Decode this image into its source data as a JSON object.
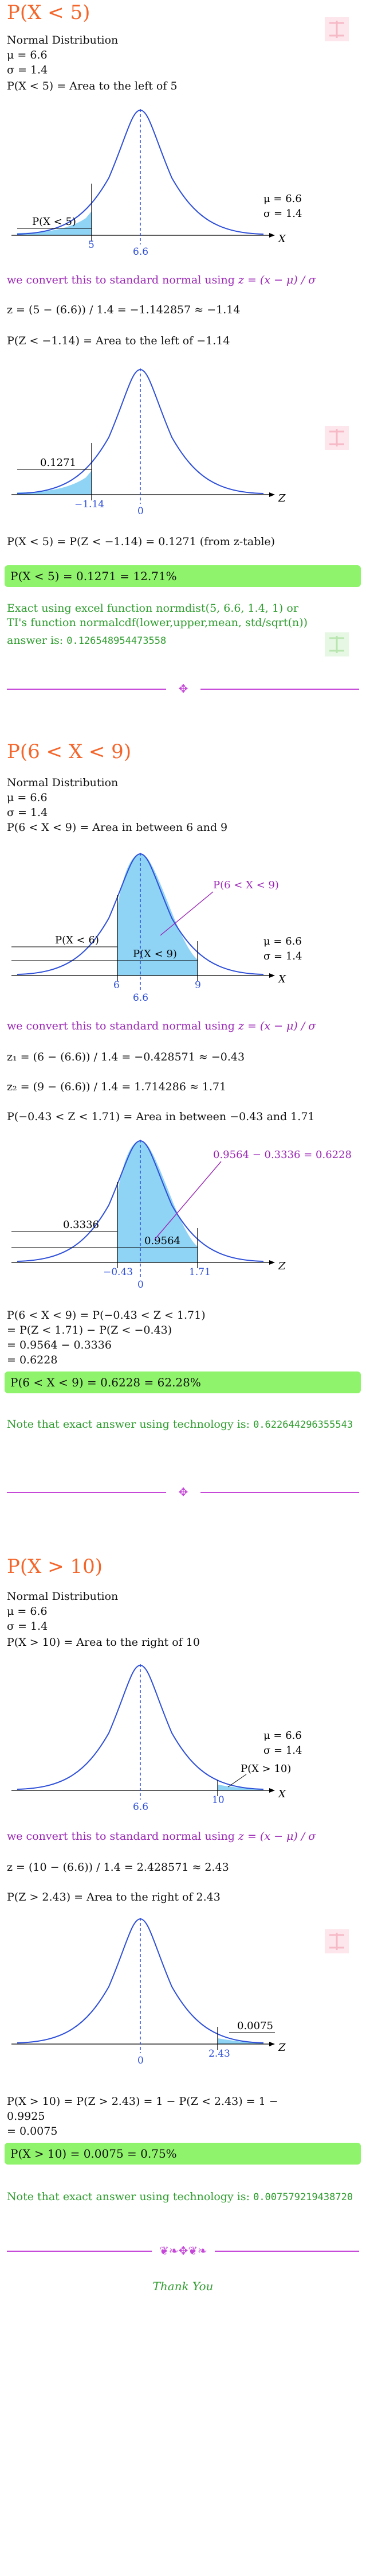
{
  "sec1": {
    "heading": "P(X < 5)",
    "l1": "Normal Distribution",
    "l2": "μ = 6.6",
    "l3": "σ = 1.4",
    "l4": "P(X < 5) = Area to the left of 5",
    "g1": {
      "area_label": "P(X < 5)",
      "mu": "μ = 6.6",
      "sigma": "σ = 1.4",
      "tick_a": "5",
      "tick_mu": "6.6",
      "axis": "X"
    },
    "convert": "we convert this to standard normal using",
    "zform": "z = (x − μ) / σ",
    "zcalc": "z = (5 − (6.6)) / 1.4 = −1.142857 ≈ −1.14",
    "pz": "P(Z < −1.14) = Area to the left of −1.14",
    "g2": {
      "area_label": "0.1271",
      "tick_a": "−1.14",
      "tick_0": "0",
      "axis": "Z"
    },
    "res": "P(X < 5) = P(Z < −1.14) = 0.1271 (from z-table)",
    "box": "P(X < 5) = 0.1271 = 12.71%",
    "excel1": "Exact using excel function normdist(5, 6.6, 1.4, 1) or",
    "excel2": "TI's function normalcdf(lower,upper,mean, std/sqrt(n))",
    "answer_label": "answer is:",
    "answer_val": "0.126548954473558"
  },
  "sec2": {
    "heading": "P(6 < X < 9)",
    "l1": "Normal Distribution",
    "l2": "μ = 6.6",
    "l3": "σ = 1.4",
    "l4": "P(6 < X < 9) = Area in between 6 and 9",
    "g1": {
      "callout": "P(6 < X < 9)",
      "left_label": "P(X < 6)",
      "right_label": "P(X < 9)",
      "mu": "μ = 6.6",
      "sigma": "σ = 1.4",
      "tick_a": "6",
      "tick_b": "9",
      "tick_mu": "6.6",
      "axis": "X"
    },
    "convert": "we convert this to standard normal using",
    "zform": "z = (x − μ) / σ",
    "z1": "z₁ = (6 − (6.6)) / 1.4 = −0.428571 ≈ −0.43",
    "z2": "z₂ = (9 − (6.6)) / 1.4 = 1.714286 ≈ 1.71",
    "pz": "P(−0.43 < Z < 1.71) = Area in between −0.43 and 1.71",
    "g2": {
      "callout": "0.9564 − 0.3336 = 0.6228",
      "left_label": "0.3336",
      "right_label": "0.9564",
      "tick_a": "−0.43",
      "tick_b": "1.71",
      "tick_0": "0",
      "axis": "Z"
    },
    "r1": "P(6 < X < 9) = P(−0.43 < Z < 1.71)",
    "r2": "= P(Z < 1.71) − P(Z < −0.43)",
    "r3": "= 0.9564 − 0.3336",
    "r4": "= 0.6228",
    "box": "P(6 < X < 9) = 0.6228 = 62.28%",
    "note_label": "Note that exact answer using technology is:",
    "note_val": "0.622644296355543"
  },
  "sec3": {
    "heading": "P(X > 10)",
    "l1": "Normal Distribution",
    "l2": "μ = 6.6",
    "l3": "σ = 1.4",
    "l4": "P(X > 10) = Area to the right of 10",
    "g1": {
      "area_label": "P(X > 10)",
      "mu": "μ = 6.6",
      "sigma": "σ = 1.4",
      "tick_a": "10",
      "tick_mu": "6.6",
      "axis": "X"
    },
    "convert": "we convert this to standard normal using",
    "zform": "z = (x − μ) / σ",
    "zcalc": "z = (10 − (6.6)) / 1.4 = 2.428571 ≈ 2.43",
    "pz": "P(Z > 2.43) = Area to the right of 2.43",
    "g2": {
      "area_label": "0.0075",
      "tick_a": "2.43",
      "tick_0": "0",
      "axis": "Z"
    },
    "r1": "P(X > 10) = P(Z > 2.43) = 1 − P(Z < 2.43) = 1 −",
    "r2": "0.9925",
    "r3": "= 0.0075",
    "box": "P(X > 10) = 0.0075 = 0.75%",
    "note_label": "Note that exact answer using technology is:",
    "note_val": "0.007579219438720"
  },
  "footer": {
    "thanks": "Thank You"
  },
  "colors": {
    "heading": "#f4652a",
    "purple": "#9b26b6",
    "green": "#2e9d2e",
    "fill": "#8fd3f5",
    "curve": "#2e4fd8",
    "box": "#8ff46b"
  }
}
